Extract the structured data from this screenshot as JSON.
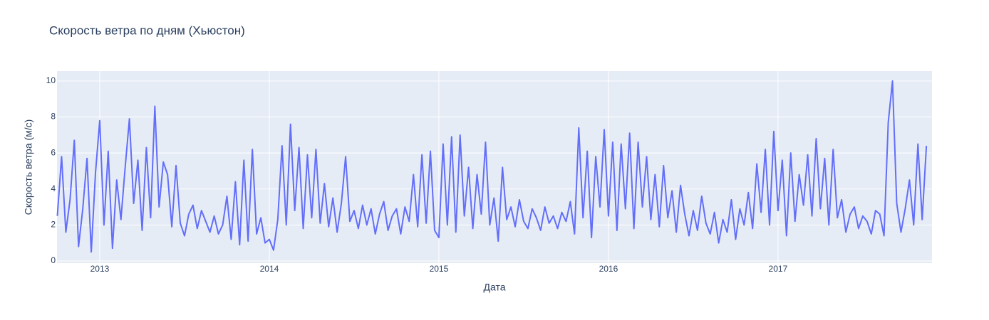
{
  "chart_data": {
    "type": "line",
    "title": "Скорость ветра по дням (Хьюстон)",
    "x_label": "Дата",
    "y_label": "Скорость ветра (м/с)",
    "xlim": [
      2012.748,
      2017.908
    ],
    "ylim": [
      -0.12,
      10.55
    ],
    "xticks": [
      2013,
      2014,
      2015,
      2016,
      2017
    ],
    "yticks": [
      0,
      2,
      4,
      6,
      8,
      10
    ],
    "grid": true,
    "series": [
      {
        "name": "Скорость ветра",
        "color": "#636efa",
        "x": [
          2012.75,
          2012.775,
          2012.8,
          2012.825,
          2012.85,
          2012.875,
          2012.9,
          2012.925,
          2012.95,
          2012.975,
          2013,
          2013.025,
          2013.05,
          2013.075,
          2013.1,
          2013.125,
          2013.15,
          2013.175,
          2013.2,
          2013.225,
          2013.25,
          2013.275,
          2013.3,
          2013.325,
          2013.35,
          2013.375,
          2013.4,
          2013.425,
          2013.45,
          2013.475,
          2013.5,
          2013.525,
          2013.55,
          2013.575,
          2013.6,
          2013.625,
          2013.65,
          2013.675,
          2013.7,
          2013.725,
          2013.75,
          2013.775,
          2013.8,
          2013.825,
          2013.85,
          2013.875,
          2013.9,
          2013.925,
          2013.95,
          2013.975,
          2014,
          2014.025,
          2014.05,
          2014.075,
          2014.1,
          2014.125,
          2014.15,
          2014.175,
          2014.2,
          2014.225,
          2014.25,
          2014.275,
          2014.3,
          2014.325,
          2014.35,
          2014.375,
          2014.4,
          2014.425,
          2014.45,
          2014.475,
          2014.5,
          2014.525,
          2014.55,
          2014.575,
          2014.6,
          2014.625,
          2014.65,
          2014.675,
          2014.7,
          2014.725,
          2014.75,
          2014.775,
          2014.8,
          2014.825,
          2014.85,
          2014.875,
          2014.9,
          2014.925,
          2014.95,
          2014.975,
          2015,
          2015.025,
          2015.05,
          2015.075,
          2015.1,
          2015.125,
          2015.15,
          2015.175,
          2015.2,
          2015.225,
          2015.25,
          2015.275,
          2015.3,
          2015.325,
          2015.35,
          2015.375,
          2015.4,
          2015.425,
          2015.45,
          2015.475,
          2015.5,
          2015.525,
          2015.55,
          2015.575,
          2015.6,
          2015.625,
          2015.65,
          2015.675,
          2015.7,
          2015.725,
          2015.75,
          2015.775,
          2015.8,
          2015.825,
          2015.85,
          2015.875,
          2015.9,
          2015.925,
          2015.95,
          2015.975,
          2016,
          2016.025,
          2016.05,
          2016.075,
          2016.1,
          2016.125,
          2016.15,
          2016.175,
          2016.2,
          2016.225,
          2016.25,
          2016.275,
          2016.3,
          2016.325,
          2016.35,
          2016.375,
          2016.4,
          2016.425,
          2016.45,
          2016.475,
          2016.5,
          2016.525,
          2016.55,
          2016.575,
          2016.6,
          2016.625,
          2016.65,
          2016.675,
          2016.7,
          2016.725,
          2016.75,
          2016.775,
          2016.8,
          2016.825,
          2016.85,
          2016.875,
          2016.9,
          2016.925,
          2016.95,
          2016.975,
          2017,
          2017.025,
          2017.05,
          2017.075,
          2017.1,
          2017.125,
          2017.15,
          2017.175,
          2017.2,
          2017.225,
          2017.25,
          2017.275,
          2017.3,
          2017.325,
          2017.35,
          2017.375,
          2017.4,
          2017.425,
          2017.45,
          2017.475,
          2017.5,
          2017.525,
          2017.55,
          2017.575,
          2017.6,
          2017.625,
          2017.65,
          2017.675,
          2017.7,
          2017.725,
          2017.75,
          2017.775,
          2017.8,
          2017.825,
          2017.85,
          2017.875
        ],
        "values": [
          2.5,
          5.8,
          1.6,
          3.4,
          6.7,
          0.8,
          2.9,
          5.7,
          0.5,
          4.9,
          7.8,
          2.0,
          6.1,
          0.7,
          4.5,
          2.3,
          5.2,
          7.9,
          3.2,
          5.6,
          1.7,
          6.3,
          2.4,
          8.6,
          3.0,
          5.5,
          4.8,
          1.9,
          5.3,
          2.1,
          1.4,
          2.6,
          3.1,
          1.8,
          2.8,
          2.2,
          1.6,
          2.5,
          1.5,
          2.0,
          3.6,
          1.2,
          4.4,
          0.9,
          5.6,
          1.1,
          6.2,
          1.5,
          2.4,
          1.0,
          1.2,
          0.6,
          2.3,
          6.4,
          2.0,
          7.6,
          2.8,
          6.3,
          1.8,
          5.9,
          2.4,
          6.2,
          2.1,
          4.3,
          1.9,
          3.5,
          1.6,
          3.2,
          5.8,
          2.2,
          2.8,
          1.8,
          3.1,
          2.0,
          2.9,
          1.5,
          2.6,
          3.3,
          1.7,
          2.5,
          2.9,
          1.5,
          3.0,
          2.2,
          4.8,
          1.9,
          5.9,
          2.1,
          6.1,
          1.7,
          1.3,
          6.5,
          2.0,
          6.9,
          1.6,
          7.0,
          2.5,
          5.2,
          1.8,
          4.8,
          2.6,
          6.6,
          2.0,
          3.5,
          1.1,
          5.2,
          2.3,
          3.0,
          1.9,
          3.4,
          2.2,
          1.8,
          2.9,
          2.4,
          1.7,
          3.0,
          2.1,
          2.5,
          1.8,
          2.7,
          2.2,
          3.3,
          1.5,
          7.4,
          2.4,
          6.1,
          1.3,
          5.8,
          3.0,
          7.3,
          2.5,
          6.6,
          1.7,
          6.5,
          2.9,
          7.1,
          1.8,
          6.6,
          3.0,
          5.8,
          2.3,
          4.8,
          1.9,
          5.3,
          2.4,
          3.9,
          1.6,
          4.2,
          2.6,
          1.4,
          2.8,
          1.7,
          3.6,
          2.1,
          1.5,
          2.7,
          1.0,
          2.3,
          1.6,
          3.4,
          1.2,
          2.9,
          2.0,
          3.8,
          1.8,
          5.4,
          2.7,
          6.2,
          2.0,
          7.2,
          2.8,
          5.6,
          1.4,
          6.0,
          2.2,
          4.8,
          3.1,
          5.9,
          2.5,
          6.8,
          2.9,
          5.7,
          2.0,
          6.2,
          2.4,
          3.4,
          1.6,
          2.6,
          3.0,
          1.8,
          2.5,
          2.2,
          1.5,
          2.8,
          2.6,
          1.4,
          7.7,
          10.0,
          3.2,
          1.6,
          2.9,
          4.5,
          2.0,
          6.5,
          2.3,
          6.4
        ]
      }
    ]
  }
}
